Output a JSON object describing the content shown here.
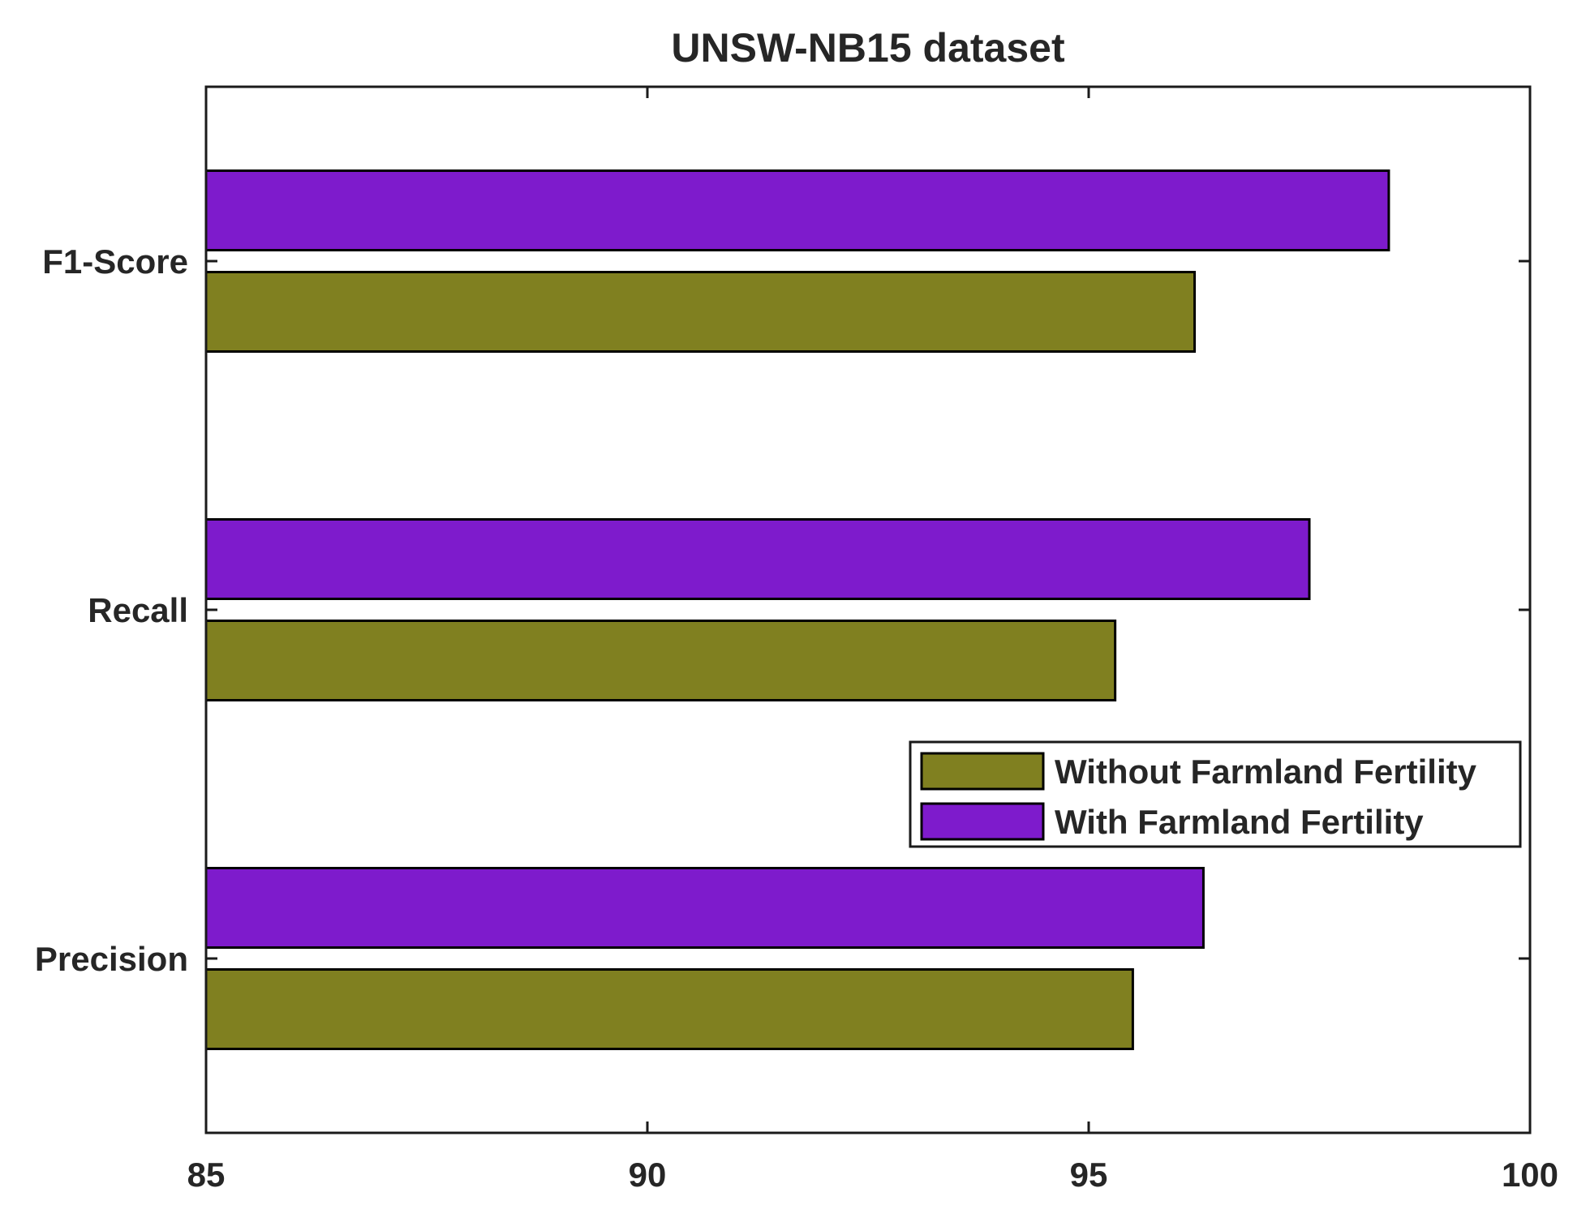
{
  "chart_data": {
    "type": "bar",
    "orientation": "horizontal",
    "title": "UNSW-NB15 dataset",
    "xlabel": "",
    "ylabel": "",
    "categories": [
      "Precision",
      "Recall",
      "F1-Score"
    ],
    "series": [
      {
        "name": "Without Farmland Fertility",
        "values": [
          95.5,
          95.3,
          96.2
        ],
        "color": "#808020"
      },
      {
        "name": "With Farmland Fertility",
        "values": [
          96.3,
          97.5,
          98.4
        ],
        "color": "#7e1bcc"
      }
    ],
    "xlim": [
      85,
      100
    ],
    "xticks": [
      85,
      90,
      95,
      100
    ],
    "xtick_labels": [
      "85",
      "90",
      "95",
      "100"
    ],
    "grid": false,
    "legend_position": "lower-right"
  }
}
